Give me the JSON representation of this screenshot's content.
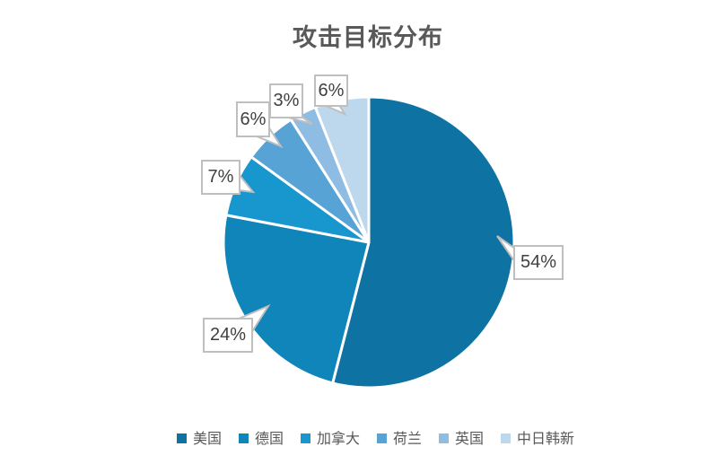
{
  "chart_data": {
    "type": "pie",
    "title": "攻击目标分布",
    "categories": [
      "美国",
      "德国",
      "加拿大",
      "荷兰",
      "英国",
      "中日韩新"
    ],
    "values": [
      54,
      24,
      7,
      6,
      3,
      6
    ],
    "unit": "%",
    "data_labels": [
      "54%",
      "24%",
      "7%",
      "6%",
      "3%",
      "6%"
    ],
    "colors": [
      "#0e73a2",
      "#0f85ba",
      "#1897ce",
      "#58a3d6",
      "#8ebce2",
      "#bdd7ec"
    ],
    "legend_position": "bottom",
    "start_angle_deg": 0,
    "direction": "clockwise",
    "title_color": "#595959",
    "label_text_color": "#404040",
    "callout_border_color": "#bfbfbf",
    "background_color": "#ffffff"
  }
}
